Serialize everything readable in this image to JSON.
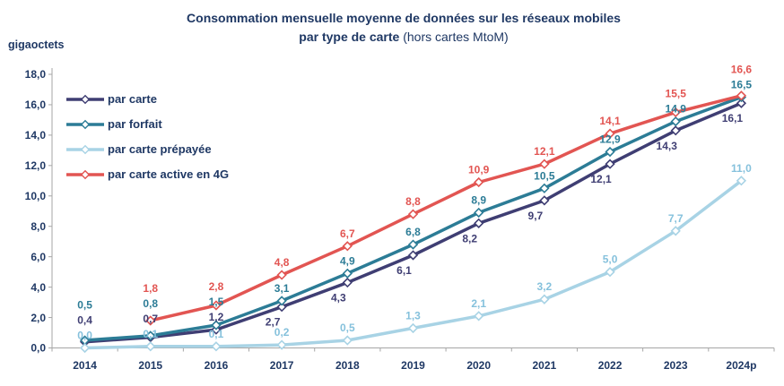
{
  "header": {
    "line1": "Consommation mensuelle moyenne de données sur les réseaux mobiles",
    "line2_bold": "par type de carte",
    "line2_normal": " (hors cartes MtoM)"
  },
  "colors": {
    "text": "#1F3864",
    "axis": "#A6A6A6",
    "background": "#FFFFFF"
  },
  "chart_data": {
    "type": "line",
    "title": "Consommation mensuelle moyenne de données sur les réseaux mobiles par type de carte (hors cartes MtoM)",
    "ylabel": "gigaoctets",
    "xlabel": "",
    "ylim": [
      0,
      18
    ],
    "ytick_step": 2,
    "ytick_labels": [
      "0,0",
      "2,0",
      "4,0",
      "6,0",
      "8,0",
      "10,0",
      "12,0",
      "14,0",
      "16,0",
      "18,0"
    ],
    "grid": false,
    "legend_position": "top-left-inside",
    "marker": "diamond-white-fill",
    "decimal_separator": ",",
    "categories": [
      "2014",
      "2015",
      "2016",
      "2017",
      "2018",
      "2019",
      "2020",
      "2021",
      "2022",
      "2023",
      "2024p"
    ],
    "series": [
      {
        "name": "par carte",
        "color": "#3F3E73",
        "label_color": "#3F3E73",
        "values": [
          0.4,
          0.7,
          1.2,
          2.7,
          4.3,
          6.1,
          8.2,
          9.7,
          12.1,
          14.3,
          16.1
        ]
      },
      {
        "name": "par forfait",
        "color": "#2C7C96",
        "label_color": "#2C7C96",
        "values": [
          0.5,
          0.8,
          1.5,
          3.1,
          4.9,
          6.8,
          8.9,
          10.5,
          12.9,
          14.9,
          16.5
        ]
      },
      {
        "name": "par carte prépayée",
        "color": "#A8D3E5",
        "label_color": "#85C1DC",
        "values": [
          0.0,
          0.1,
          0.1,
          0.2,
          0.5,
          1.3,
          2.1,
          3.2,
          5.0,
          7.7,
          11.0
        ]
      },
      {
        "name": "par carte active en 4G",
        "color": "#E25552",
        "label_color": "#E25552",
        "values": [
          null,
          1.8,
          2.8,
          4.8,
          6.7,
          8.8,
          10.9,
          12.1,
          14.1,
          15.5,
          16.6
        ]
      }
    ]
  }
}
